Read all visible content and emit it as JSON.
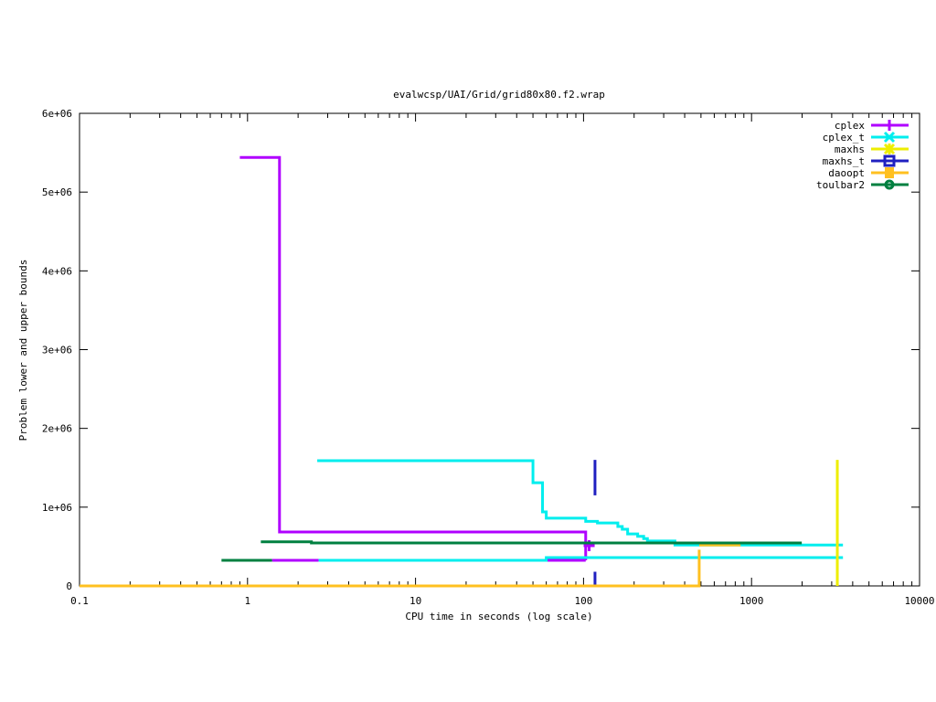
{
  "chart_data": {
    "type": "line",
    "title": "evalwcsp/UAI/Grid/grid80x80.f2.wrap",
    "xlabel": "CPU time in seconds (log scale)",
    "ylabel": "Problem lower and upper bounds",
    "xscale": "log",
    "xlim": [
      0.1,
      10000
    ],
    "ylim": [
      0,
      6000000
    ],
    "xticks": [
      {
        "v": 0.1,
        "label": "0.1"
      },
      {
        "v": 1,
        "label": "1"
      },
      {
        "v": 10,
        "label": "10"
      },
      {
        "v": 100,
        "label": "100"
      },
      {
        "v": 1000,
        "label": "1000"
      },
      {
        "v": 10000,
        "label": "10000"
      }
    ],
    "yticks": [
      {
        "v": 0,
        "label": "0"
      },
      {
        "v": 1000000,
        "label": "1e+06"
      },
      {
        "v": 2000000,
        "label": "2e+06"
      },
      {
        "v": 3000000,
        "label": "3e+06"
      },
      {
        "v": 4000000,
        "label": "4e+06"
      },
      {
        "v": 5000000,
        "label": "5e+06"
      },
      {
        "v": 6000000,
        "label": "6e+06"
      }
    ],
    "grid": false,
    "legend_position": "top-right",
    "series": [
      {
        "name": "cplex",
        "color": "#b000ff",
        "marker": "plus",
        "marker_point": [
          108,
          510000
        ],
        "pieces": [
          [
            [
              0.9,
              5440000
            ],
            [
              1.55,
              5440000
            ],
            [
              1.55,
              685000
            ],
            [
              103,
              685000
            ],
            [
              103,
              325000
            ]
          ],
          [
            [
              1.4,
              325000
            ],
            [
              2.65,
              325000
            ]
          ],
          [
            [
              13,
              325000
            ],
            [
              103,
              325000
            ]
          ]
        ]
      },
      {
        "name": "cplex_t",
        "color": "#00eeee",
        "marker": "x",
        "pieces": [
          [
            [
              2.6,
              1590000
            ],
            [
              50,
              1590000
            ],
            [
              50,
              1310000
            ],
            [
              57,
              1310000
            ],
            [
              57,
              940000
            ],
            [
              60,
              940000
            ],
            [
              60,
              860000
            ],
            [
              103,
              860000
            ],
            [
              103,
              820000
            ],
            [
              121,
              820000
            ],
            [
              121,
              800000
            ],
            [
              160,
              800000
            ],
            [
              160,
              755000
            ],
            [
              170,
              755000
            ],
            [
              170,
              720000
            ],
            [
              183,
              720000
            ],
            [
              183,
              660000
            ],
            [
              210,
              660000
            ],
            [
              210,
              630000
            ],
            [
              228,
              630000
            ],
            [
              228,
              600000
            ],
            [
              240,
              600000
            ],
            [
              240,
              570000
            ],
            [
              350,
              570000
            ],
            [
              350,
              520000
            ],
            [
              3500,
              520000
            ]
          ],
          [
            [
              2.65,
              325000
            ],
            [
              60,
              325000
            ],
            [
              60,
              360000
            ],
            [
              3500,
              360000
            ]
          ]
        ]
      },
      {
        "name": "maxhs",
        "color": "#eeee00",
        "marker": "star",
        "pieces": [
          [
            [
              3240,
              0
            ],
            [
              3240,
              1600000
            ]
          ]
        ]
      },
      {
        "name": "maxhs_t",
        "color": "#2020c0",
        "marker": "box",
        "pieces": [
          [
            [
              117,
              1150000
            ],
            [
              117,
              1600000
            ]
          ],
          [
            [
              117,
              0
            ],
            [
              117,
              180000
            ]
          ]
        ]
      },
      {
        "name": "daoopt",
        "color": "#ffc020",
        "marker": "filled-box",
        "pieces": [
          [
            [
              0.1,
              0
            ],
            [
              488,
              0
            ],
            [
              488,
              460000
            ]
          ],
          [
            [
              488,
              520000
            ],
            [
              860,
              520000
            ]
          ]
        ]
      },
      {
        "name": "toulbar2",
        "color": "#008040",
        "marker": "circle",
        "pieces": [
          [
            [
              0.7,
              325000
            ],
            [
              1.4,
              325000
            ]
          ],
          [
            [
              1.2,
              560000
            ],
            [
              2.4,
              560000
            ],
            [
              2.4,
              545000
            ],
            [
              1990,
              545000
            ]
          ]
        ]
      }
    ]
  }
}
